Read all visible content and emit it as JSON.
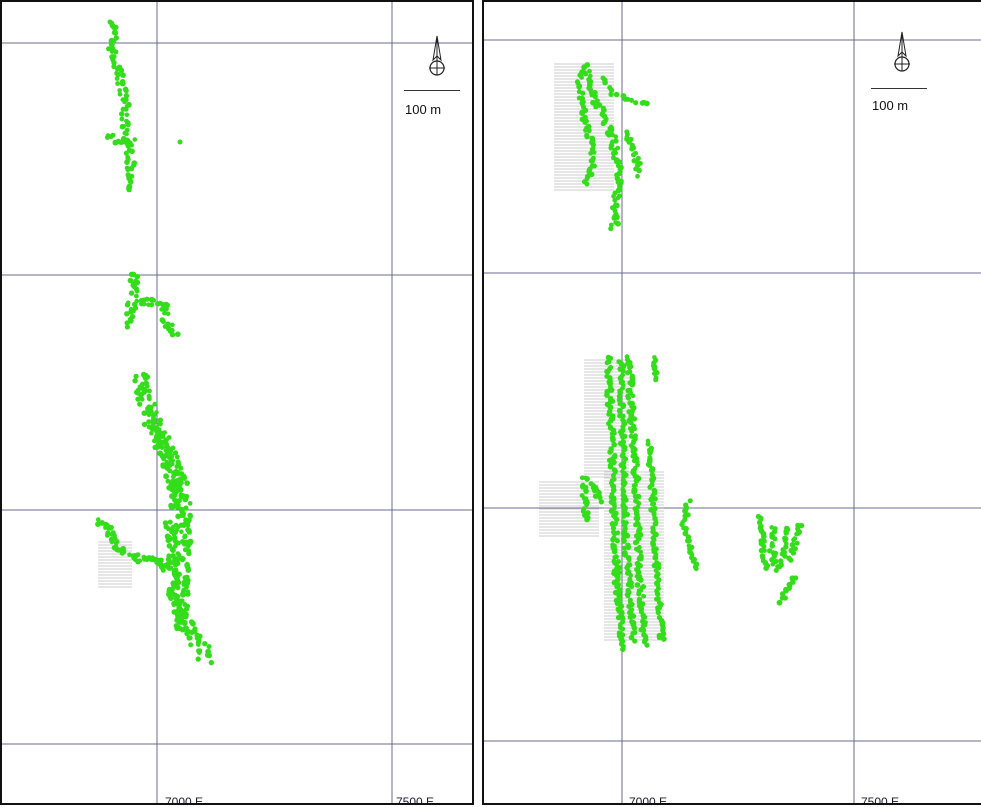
{
  "panels": [
    {
      "id": "left",
      "x_ticks": [
        {
          "label": "7000 E"
        },
        {
          "label": "7500 E"
        }
      ],
      "scale_label": "100 m",
      "point_color": "#33dd1a",
      "hatch_color": "#9a9a9a"
    },
    {
      "id": "right",
      "x_ticks": [
        {
          "label": "7000 E"
        },
        {
          "label": "7500 E"
        }
      ],
      "scale_label": "100 m",
      "point_color": "#33dd1a",
      "hatch_color": "#9a9a9a"
    }
  ],
  "icons": {
    "north_arrow": "north-arrow-icon"
  }
}
